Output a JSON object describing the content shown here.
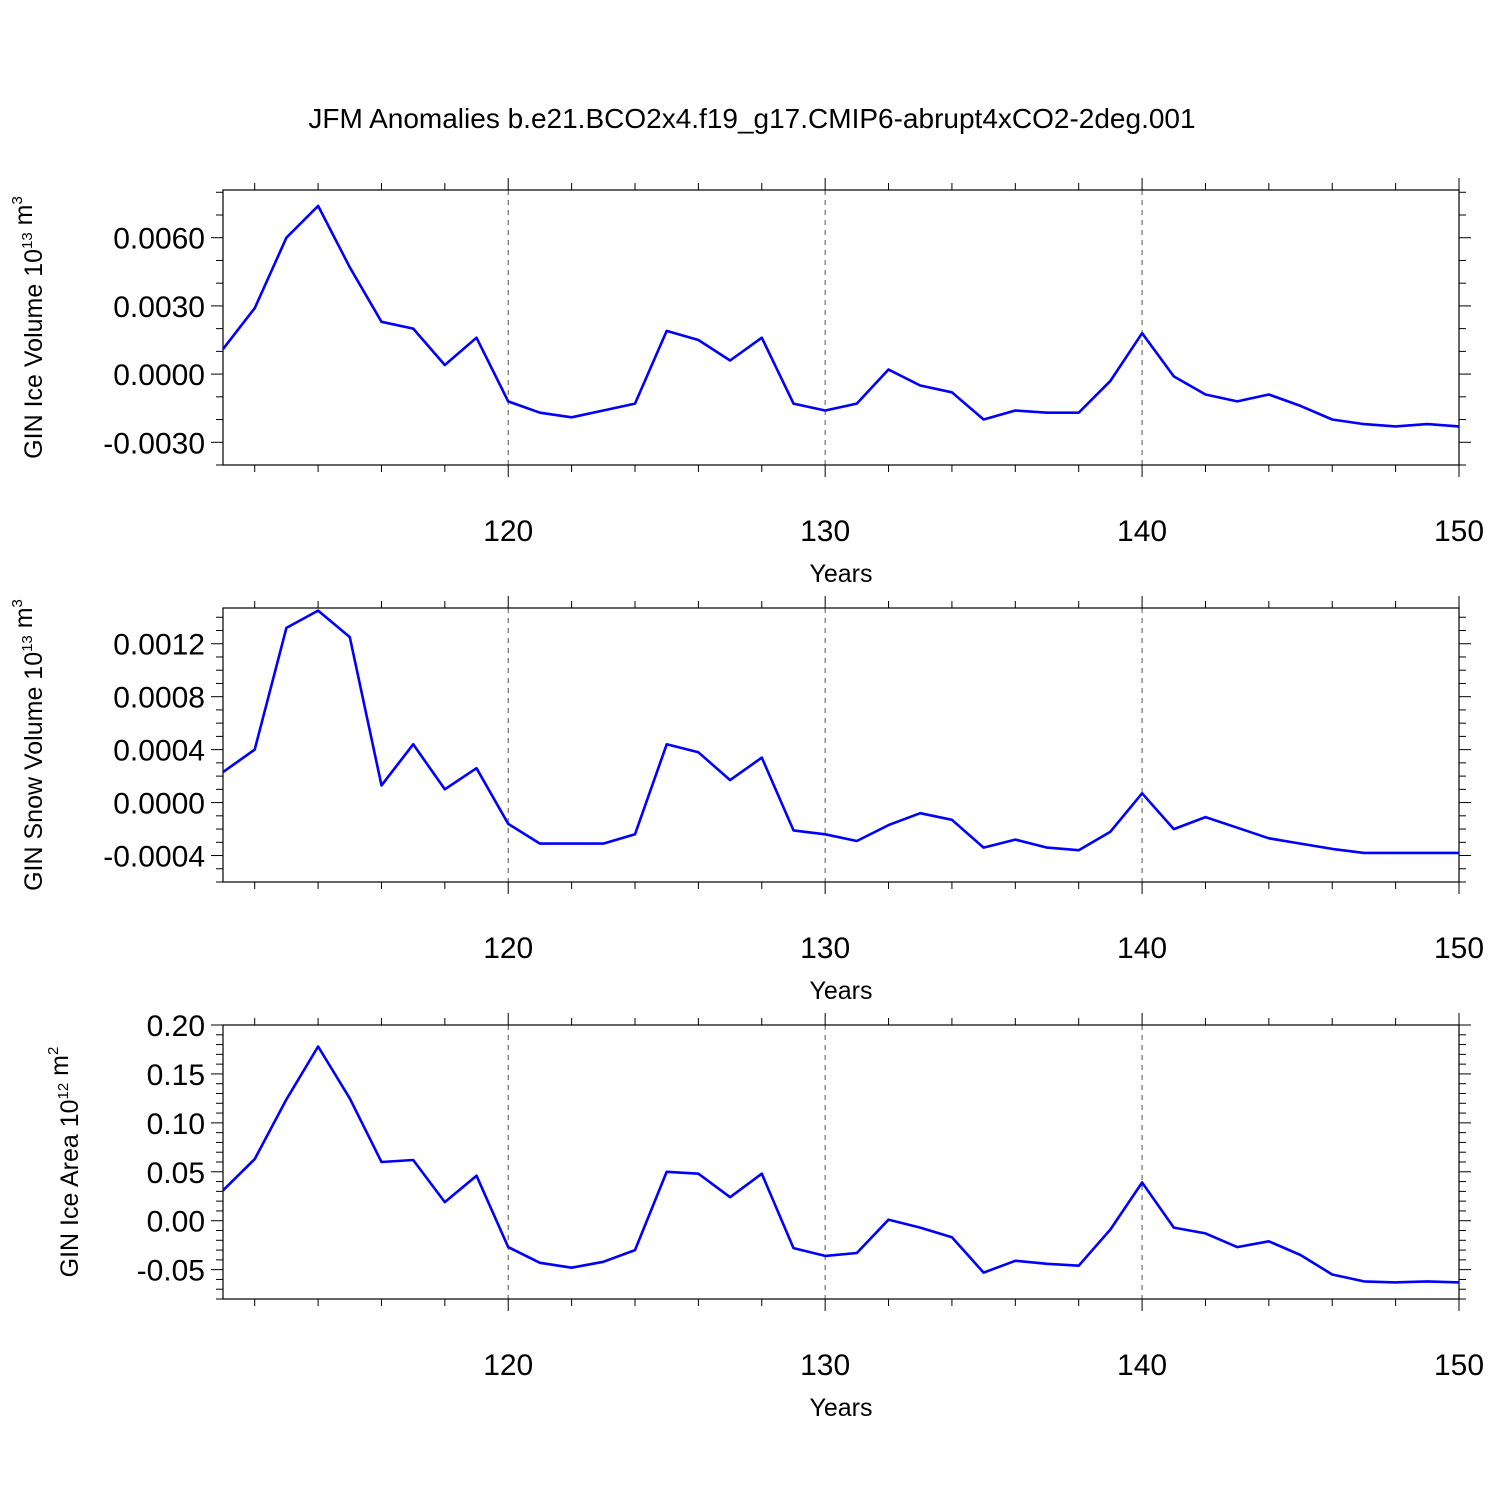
{
  "page_title": "JFM Anomalies b.e21.BCO2x4.f19_g17.CMIP6-abrupt4xCO2-2deg.001",
  "series_color": "#0000ff",
  "chart_data": [
    {
      "type": "line",
      "title": "JFM Anomalies b.e21.BCO2x4.f19_g17.CMIP6-abrupt4xCO2-2deg.001",
      "xlabel": "Years",
      "ylabel_prefix": "GIN Ice Volume 10",
      "ylabel_exp": "13",
      "ylabel_unit": " m",
      "ylabel_unit_exp": "3",
      "xlim": [
        111,
        150
      ],
      "ylim": [
        -0.004,
        0.0081
      ],
      "x_ticks": [
        120,
        130,
        140,
        150
      ],
      "x_minor_step": 2,
      "y_ticks": [
        -0.003,
        0.0,
        0.003,
        0.006
      ],
      "y_tick_labels": [
        "-0.0030",
        "0.0000",
        "0.0030",
        "0.0060"
      ],
      "y_minor_step": 0.001,
      "grid": "vertical dashed at major x ticks",
      "x": [
        111,
        112,
        113,
        114,
        115,
        116,
        117,
        118,
        119,
        120,
        121,
        122,
        123,
        124,
        125,
        126,
        127,
        128,
        129,
        130,
        131,
        132,
        133,
        134,
        135,
        136,
        137,
        138,
        139,
        140,
        141,
        142,
        143,
        144,
        145,
        146,
        147,
        148,
        149,
        150
      ],
      "values": [
        0.0011,
        0.0029,
        0.006,
        0.0074,
        0.0047,
        0.0023,
        0.002,
        0.0004,
        0.0016,
        -0.0012,
        -0.0017,
        -0.0019,
        -0.0016,
        -0.0013,
        0.0019,
        0.0015,
        0.0006,
        0.0016,
        -0.0013,
        -0.0016,
        -0.0013,
        0.0002,
        -0.0005,
        -0.0008,
        -0.002,
        -0.0016,
        -0.0017,
        -0.0017,
        -0.0003,
        0.0018,
        -0.0001,
        -0.0009,
        -0.0012,
        -0.0009,
        -0.0014,
        -0.002,
        -0.0022,
        -0.0023,
        -0.0022,
        -0.0023
      ]
    },
    {
      "type": "line",
      "xlabel": "Years",
      "ylabel_prefix": "GIN Snow Volume 10",
      "ylabel_exp": "13",
      "ylabel_unit": " m",
      "ylabel_unit_exp": "3",
      "xlim": [
        111,
        150
      ],
      "ylim": [
        -0.0006,
        0.00147
      ],
      "x_ticks": [
        120,
        130,
        140,
        150
      ],
      "x_minor_step": 2,
      "y_ticks": [
        -0.0004,
        0.0,
        0.0004,
        0.0008,
        0.0012
      ],
      "y_tick_labels": [
        "-0.0004",
        "0.0000",
        "0.0004",
        "0.0008",
        "0.0012"
      ],
      "y_minor_step": 0.0001,
      "grid": "vertical dashed at major x ticks",
      "x": [
        111,
        112,
        113,
        114,
        115,
        116,
        117,
        118,
        119,
        120,
        121,
        122,
        123,
        124,
        125,
        126,
        127,
        128,
        129,
        130,
        131,
        132,
        133,
        134,
        135,
        136,
        137,
        138,
        139,
        140,
        141,
        142,
        143,
        144,
        145,
        146,
        147,
        148,
        149,
        150
      ],
      "values": [
        0.00023,
        0.0004,
        0.00132,
        0.00145,
        0.00125,
        0.00013,
        0.00044,
        0.0001,
        0.00026,
        -0.00016,
        -0.00031,
        -0.00031,
        -0.00031,
        -0.00024,
        0.00044,
        0.00038,
        0.00017,
        0.00034,
        -0.00021,
        -0.00024,
        -0.00029,
        -0.00017,
        -8e-05,
        -0.00013,
        -0.00034,
        -0.00028,
        -0.00034,
        -0.00036,
        -0.00022,
        7e-05,
        -0.0002,
        -0.00011,
        -0.00019,
        -0.00027,
        -0.00031,
        -0.00035,
        -0.00038,
        -0.00038,
        -0.00038,
        -0.00038
      ]
    },
    {
      "type": "line",
      "xlabel": "Years",
      "ylabel_prefix": "GIN Ice Area 10",
      "ylabel_exp": "12",
      "ylabel_unit": " m",
      "ylabel_unit_exp": "2",
      "xlim": [
        111,
        150
      ],
      "ylim": [
        -0.08,
        0.2
      ],
      "x_ticks": [
        120,
        130,
        140,
        150
      ],
      "x_minor_step": 2,
      "y_ticks": [
        -0.05,
        0.0,
        0.05,
        0.1,
        0.15,
        0.2
      ],
      "y_tick_labels": [
        "-0.05",
        "0.00",
        "0.05",
        "0.10",
        "0.15",
        "0.20"
      ],
      "y_minor_step": 0.01,
      "grid": "vertical dashed at major x ticks",
      "x": [
        111,
        112,
        113,
        114,
        115,
        116,
        117,
        118,
        119,
        120,
        121,
        122,
        123,
        124,
        125,
        126,
        127,
        128,
        129,
        130,
        131,
        132,
        133,
        134,
        135,
        136,
        137,
        138,
        139,
        140,
        141,
        142,
        143,
        144,
        145,
        146,
        147,
        148,
        149,
        150
      ],
      "values": [
        0.031,
        0.063,
        0.124,
        0.178,
        0.125,
        0.06,
        0.062,
        0.019,
        0.046,
        -0.027,
        -0.043,
        -0.048,
        -0.042,
        -0.03,
        0.05,
        0.048,
        0.024,
        0.048,
        -0.028,
        -0.036,
        -0.033,
        0.001,
        -0.007,
        -0.017,
        -0.053,
        -0.041,
        -0.044,
        -0.046,
        -0.009,
        0.039,
        -0.007,
        -0.013,
        -0.027,
        -0.021,
        -0.035,
        -0.055,
        -0.062,
        -0.063,
        -0.062,
        -0.063
      ]
    }
  ]
}
